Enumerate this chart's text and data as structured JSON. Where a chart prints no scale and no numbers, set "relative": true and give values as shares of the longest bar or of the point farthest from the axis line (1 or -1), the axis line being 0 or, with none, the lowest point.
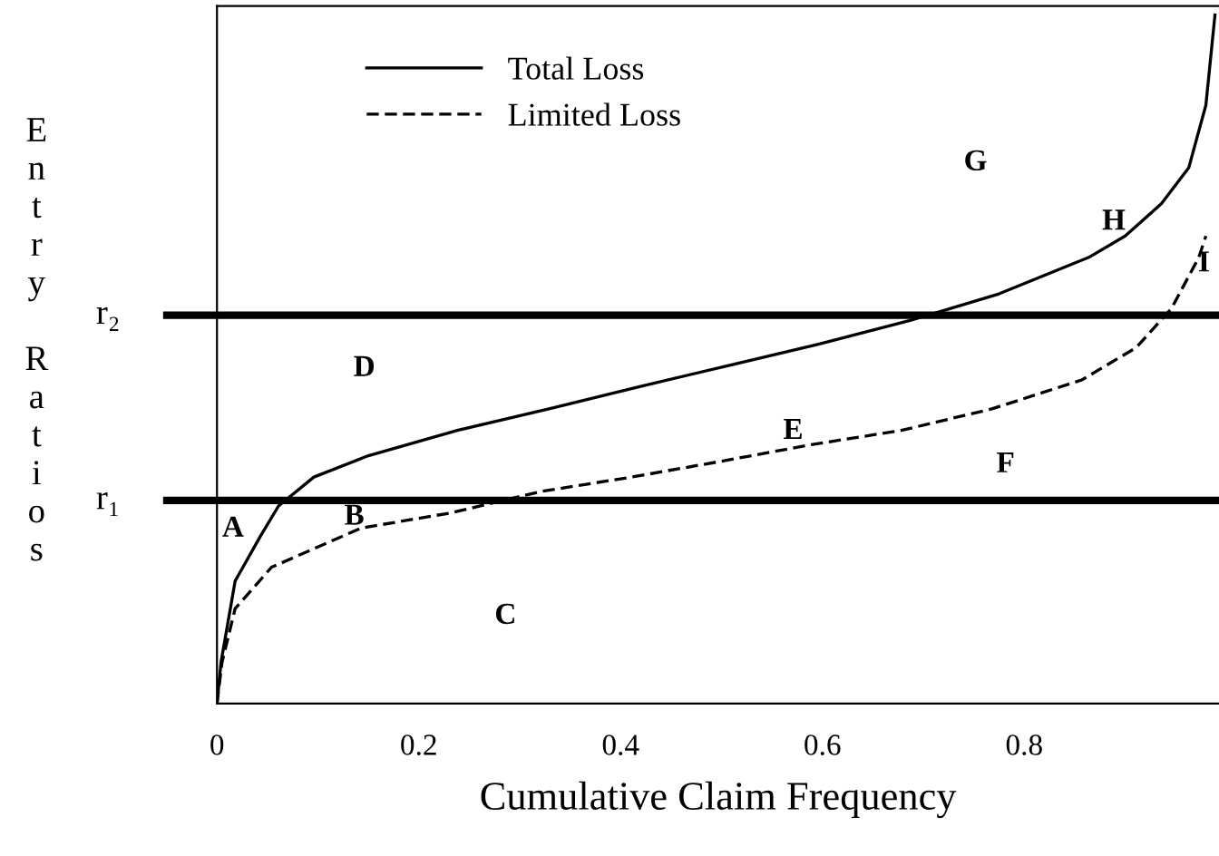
{
  "chart_data": {
    "type": "line",
    "relative": true,
    "xlabel": "Cumulative Claim Frequency",
    "ylabel": "Entry Ratios",
    "xlim": [
      0,
      0.993
    ],
    "xticks": [
      0,
      0.2,
      0.4,
      0.6,
      0.8
    ],
    "grid": false,
    "legend": "top left",
    "marker": "none",
    "series": [
      {
        "name": "Total Loss",
        "color": "#000000",
        "line_style": "solid",
        "x": [
          0.0,
          0.004,
          0.018,
          0.043,
          0.061,
          0.096,
          0.15,
          0.239,
          0.329,
          0.418,
          0.507,
          0.596,
          0.686,
          0.775,
          0.864,
          0.9,
          0.936,
          0.963,
          0.98,
          0.989
        ],
        "values": [
          0.0,
          0.06,
          0.178,
          0.243,
          0.287,
          0.329,
          0.36,
          0.397,
          0.428,
          0.46,
          0.491,
          0.522,
          0.556,
          0.595,
          0.648,
          0.679,
          0.726,
          0.778,
          0.869,
          1
        ]
      },
      {
        "name": "Limited Loss",
        "color": "#000000",
        "line_style": "dashed",
        "x": [
          0.0,
          0.005,
          0.018,
          0.054,
          0.143,
          0.232,
          0.321,
          0.411,
          0.5,
          0.589,
          0.679,
          0.768,
          0.857,
          0.911,
          0.946,
          0.973,
          0.98
        ],
        "values": [
          0.0,
          0.06,
          0.138,
          0.198,
          0.255,
          0.277,
          0.308,
          0.329,
          0.352,
          0.376,
          0.397,
          0.428,
          0.47,
          0.517,
          0.574,
          0.648,
          0.679
        ]
      }
    ],
    "ref_lines": [
      {
        "axis": "y",
        "value": 0.295,
        "label": "r₁",
        "color": "#000000"
      },
      {
        "axis": "y",
        "value": 0.564,
        "label": "r₂",
        "color": "#000000"
      }
    ],
    "annotations": [
      "A",
      "B",
      "C",
      "D",
      "E",
      "F",
      "G",
      "H",
      "I"
    ]
  }
}
